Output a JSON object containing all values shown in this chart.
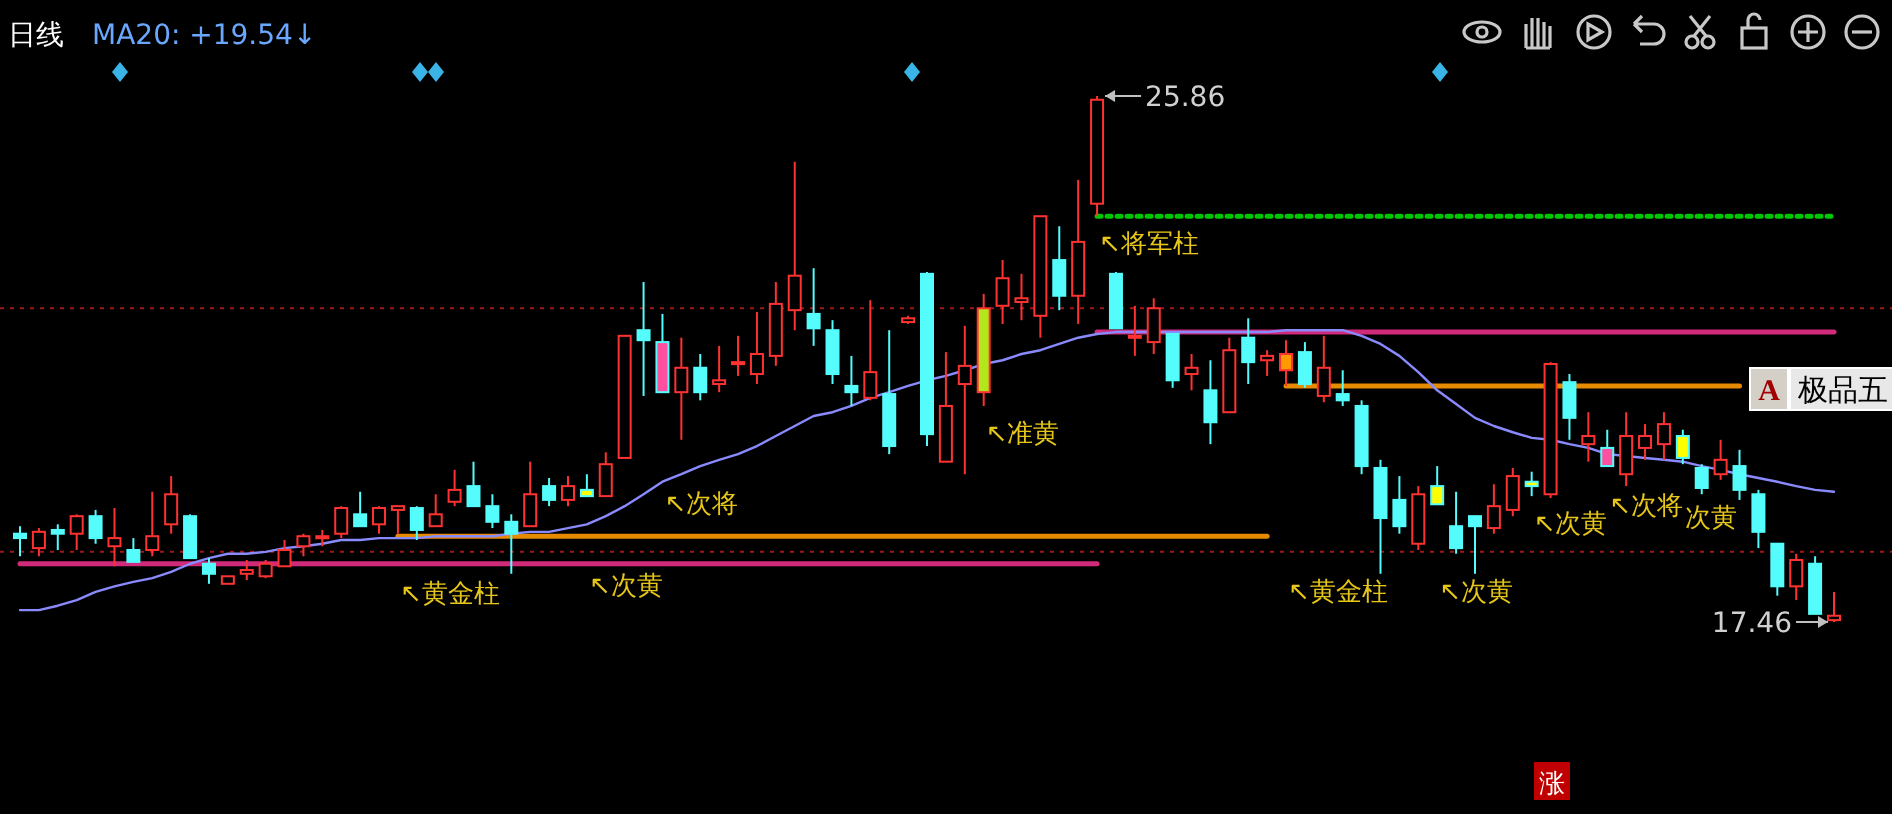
{
  "chart_data": {
    "type": "candlestick",
    "title": "日线",
    "subtitle": "MA20: +19.54↓",
    "categories": [
      null,
      null,
      null,
      null,
      null,
      null,
      null,
      null,
      null,
      null,
      null,
      null,
      null,
      null,
      null,
      null,
      null,
      null,
      null,
      null,
      null,
      null,
      null,
      null,
      null,
      null,
      null,
      null,
      null,
      null,
      null,
      null,
      null,
      null,
      null,
      null,
      null,
      null,
      null,
      null,
      null,
      null,
      null,
      null,
      null,
      null,
      null,
      null,
      null,
      null,
      null,
      null,
      null,
      null,
      null,
      null,
      null,
      null,
      null,
      null,
      null,
      null,
      null,
      null,
      null,
      null,
      null,
      null,
      null,
      null,
      null,
      null,
      null,
      null,
      null,
      null,
      null,
      null,
      null,
      null,
      null,
      null,
      null,
      null,
      null,
      null,
      null,
      null,
      null,
      null,
      null,
      null,
      null,
      null,
      null,
      null,
      null
    ],
    "ohlc": [
      [
        18.87,
        18.99,
        18.51,
        18.8
      ],
      [
        18.64,
        18.96,
        18.51,
        18.9
      ],
      [
        18.93,
        19.02,
        18.61,
        18.87
      ],
      [
        18.87,
        19.18,
        18.61,
        19.15
      ],
      [
        19.15,
        19.25,
        18.71,
        18.8
      ],
      [
        18.67,
        19.28,
        18.35,
        18.8
      ],
      [
        18.61,
        18.8,
        18.42,
        18.42
      ],
      [
        18.61,
        19.54,
        18.51,
        18.83
      ],
      [
        19.02,
        19.79,
        18.87,
        19.5
      ],
      [
        19.15,
        19.18,
        18.48,
        18.48
      ],
      [
        18.39,
        18.48,
        18.07,
        18.23
      ],
      [
        18.07,
        18.19,
        18.07,
        18.19
      ],
      [
        18.23,
        18.45,
        18.13,
        18.29
      ],
      [
        18.19,
        18.45,
        18.16,
        18.39
      ],
      [
        18.35,
        18.77,
        18.35,
        18.61
      ],
      [
        18.67,
        18.87,
        18.51,
        18.83
      ],
      [
        18.8,
        18.93,
        18.67,
        18.83
      ],
      [
        18.87,
        19.31,
        18.8,
        19.28
      ],
      [
        19.18,
        19.54,
        18.99,
        18.99
      ],
      [
        19.02,
        19.31,
        18.87,
        19.28
      ],
      [
        19.25,
        19.31,
        18.87,
        19.31
      ],
      [
        19.28,
        19.31,
        18.77,
        18.93
      ],
      [
        18.99,
        19.5,
        18.99,
        19.18
      ],
      [
        19.38,
        19.89,
        19.31,
        19.57
      ],
      [
        19.63,
        20.02,
        19.31,
        19.31
      ],
      [
        19.31,
        19.5,
        18.96,
        19.06
      ],
      [
        19.06,
        19.18,
        18.23,
        18.87
      ],
      [
        18.99,
        20.02,
        18.99,
        19.5
      ],
      [
        19.63,
        19.76,
        19.31,
        19.41
      ],
      [
        19.41,
        19.79,
        19.31,
        19.63
      ],
      [
        19.57,
        19.82,
        19.47,
        19.47
      ],
      [
        19.47,
        20.17,
        19.47,
        19.98
      ],
      [
        20.08,
        22.03,
        20.08,
        22.03
      ],
      [
        22.12,
        22.89,
        21.07,
        21.96
      ],
      [
        21.93,
        22.38,
        21.13,
        21.13
      ],
      [
        21.13,
        22.0,
        20.37,
        21.52
      ],
      [
        21.52,
        21.74,
        21.0,
        21.13
      ],
      [
        21.26,
        21.87,
        21.13,
        21.32
      ],
      [
        21.58,
        22.03,
        21.39,
        21.61
      ],
      [
        21.42,
        22.41,
        21.26,
        21.74
      ],
      [
        21.71,
        22.89,
        21.55,
        22.54
      ],
      [
        22.44,
        24.81,
        22.12,
        22.99
      ],
      [
        22.38,
        23.11,
        21.87,
        22.15
      ],
      [
        22.12,
        22.28,
        21.26,
        21.42
      ],
      [
        21.23,
        21.71,
        20.91,
        21.13
      ],
      [
        21.04,
        22.6,
        21.0,
        21.45
      ],
      [
        21.1,
        22.12,
        20.14,
        20.27
      ],
      [
        22.25,
        22.35,
        22.22,
        22.31
      ],
      [
        23.02,
        23.05,
        20.27,
        20.46
      ],
      [
        20.02,
        21.77,
        20.02,
        20.91
      ],
      [
        21.26,
        22.19,
        19.82,
        21.55
      ],
      [
        21.13,
        22.7,
        20.91,
        22.47
      ],
      [
        22.51,
        23.24,
        22.22,
        22.95
      ],
      [
        22.57,
        23.02,
        22.28,
        22.63
      ],
      [
        22.35,
        23.94,
        22.0,
        23.94
      ],
      [
        23.24,
        23.78,
        22.44,
        22.67
      ],
      [
        22.67,
        24.52,
        22.22,
        23.53
      ],
      [
        24.14,
        25.86,
        23.94,
        25.8
      ],
      [
        23.02,
        23.05,
        22.15,
        22.15
      ],
      [
        22.0,
        22.51,
        21.71,
        22.03
      ],
      [
        21.93,
        22.63,
        21.74,
        22.47
      ],
      [
        22.06,
        22.06,
        21.2,
        21.32
      ],
      [
        21.42,
        21.74,
        21.16,
        21.52
      ],
      [
        21.16,
        21.64,
        20.3,
        20.65
      ],
      [
        20.81,
        22.0,
        20.81,
        21.8
      ],
      [
        22.0,
        22.31,
        21.26,
        21.61
      ],
      [
        21.64,
        21.8,
        21.39,
        21.71
      ],
      [
        21.48,
        21.96,
        21.23,
        21.74
      ],
      [
        21.77,
        21.93,
        21.2,
        21.26
      ],
      [
        21.07,
        22.03,
        20.97,
        21.52
      ],
      [
        21.1,
        21.48,
        20.91,
        21.0
      ],
      [
        20.91,
        21.0,
        19.82,
        19.95
      ],
      [
        19.92,
        20.05,
        18.23,
        19.12
      ],
      [
        19.41,
        19.79,
        18.87,
        18.99
      ],
      [
        18.71,
        19.63,
        18.61,
        19.5
      ],
      [
        19.63,
        19.95,
        19.34,
        19.34
      ],
      [
        18.99,
        19.54,
        18.55,
        18.64
      ],
      [
        19.15,
        19.15,
        18.23,
        18.99
      ],
      [
        18.96,
        19.66,
        18.87,
        19.31
      ],
      [
        19.25,
        19.92,
        19.15,
        19.79
      ],
      [
        19.7,
        19.86,
        19.47,
        19.63
      ],
      [
        19.5,
        21.61,
        19.44,
        21.58
      ],
      [
        21.29,
        21.42,
        20.37,
        20.72
      ],
      [
        20.3,
        20.81,
        20.02,
        20.43
      ],
      [
        20.24,
        20.53,
        19.95,
        19.95
      ],
      [
        19.82,
        20.81,
        19.63,
        20.43
      ],
      [
        20.24,
        20.62,
        20.05,
        20.43
      ],
      [
        20.3,
        20.81,
        20.05,
        20.62
      ],
      [
        20.43,
        20.53,
        19.98,
        20.08
      ],
      [
        19.92,
        19.98,
        19.5,
        19.6
      ],
      [
        19.82,
        20.37,
        19.73,
        20.05
      ],
      [
        19.95,
        20.21,
        19.41,
        19.57
      ],
      [
        19.5,
        19.57,
        18.64,
        18.9
      ],
      [
        18.71,
        18.71,
        17.88,
        18.03
      ],
      [
        18.03,
        18.55,
        17.81,
        18.45
      ],
      [
        18.39,
        18.51,
        17.59,
        17.59
      ],
      [
        17.49,
        17.94,
        17.46,
        17.56
      ]
    ],
    "colors": [
      "#54fcfc",
      "#ff3232",
      "#54fcfc",
      "#ff3232",
      "#54fcfc",
      "#ff3232",
      "#54fcfc",
      "#ff3232",
      "#ff3232",
      "#54fcfc",
      "#54fcfc",
      "#ff3232",
      "#ff3232",
      "#ff3232",
      "#ff3232",
      "#ff3232",
      "#ff3232",
      "#ff3232",
      "#54fcfc",
      "#ff3232",
      "#ff3232",
      "#54fcfc",
      "#ff3232",
      "#ff3232",
      "#54fcfc",
      "#54fcfc",
      "#54fcfc",
      "#ff3232",
      "#54fcfc",
      "#ff3232",
      "#ffff00",
      "#ff3232",
      "#ff3232",
      "#54fcfc",
      "#ff4fa0",
      "#ff3232",
      "#54fcfc",
      "#ff3232",
      "#ff3232",
      "#ff3232",
      "#ff3232",
      "#ff3232",
      "#54fcfc",
      "#54fcfc",
      "#54fcfc",
      "#ff3232",
      "#54fcfc",
      "#ff3232",
      "#54fcfc",
      "#ff3232",
      "#ff3232",
      "#b4e61e",
      "#ff3232",
      "#ff3232",
      "#ff3232",
      "#54fcfc",
      "#ff3232",
      "#ff3232",
      "#54fcfc",
      "#ff3232",
      "#ff3232",
      "#54fcfc",
      "#ff3232",
      "#54fcfc",
      "#ff3232",
      "#54fcfc",
      "#ff3232",
      "#ff9a00",
      "#54fcfc",
      "#ff3232",
      "#54fcfc",
      "#54fcfc",
      "#54fcfc",
      "#54fcfc",
      "#ff3232",
      "#ffff00",
      "#54fcfc",
      "#54fcfc",
      "#ff3232",
      "#ff3232",
      "#ffff00",
      "#ff3232",
      "#54fcfc",
      "#ff3232",
      "#ff4fa0",
      "#ff3232",
      "#ff3232",
      "#ff3232",
      "#ffff00",
      "#54fcfc",
      "#ff3232",
      "#54fcfc",
      "#54fcfc",
      "#54fcfc",
      "#ff3232",
      "#54fcfc",
      "#ff3232"
    ],
    "value_labels": [
      null,
      null,
      null,
      null,
      null,
      null,
      null,
      null,
      null,
      null,
      null,
      null,
      null,
      null,
      null,
      null,
      null,
      null,
      null,
      null,
      "↖黄金柱",
      null,
      null,
      null,
      null,
      null,
      null,
      null,
      null,
      null,
      "↖次黄",
      null,
      null,
      null,
      "↖次将",
      null,
      null,
      null,
      null,
      null,
      null,
      null,
      null,
      null,
      null,
      null,
      null,
      null,
      null,
      null,
      null,
      "↖准黄",
      null,
      null,
      null,
      null,
      null,
      "↖将军柱",
      null,
      null,
      null,
      null,
      null,
      null,
      null,
      null,
      null,
      "↖黄金柱",
      null,
      null,
      null,
      null,
      null,
      null,
      null,
      "↖次黄",
      null,
      null,
      null,
      null,
      "↖次黄",
      null,
      null,
      null,
      "↖次将",
      null,
      null,
      null,
      "次黄",
      null,
      null,
      null,
      null,
      null,
      null,
      null,
      null
    ],
    "series": [
      {
        "type": "line",
        "color": "#8a8aff",
        "values": [
          17.65,
          17.65,
          17.72,
          17.81,
          17.94,
          18.03,
          18.1,
          18.16,
          18.26,
          18.39,
          18.48,
          18.55,
          18.55,
          18.58,
          18.64,
          18.67,
          18.71,
          18.77,
          18.77,
          18.8,
          18.8,
          18.8,
          18.83,
          18.83,
          18.83,
          18.83,
          18.87,
          18.9,
          18.9,
          18.96,
          19.02,
          19.15,
          19.31,
          19.5,
          19.7,
          19.82,
          19.95,
          20.05,
          20.14,
          20.27,
          20.43,
          20.59,
          20.75,
          20.81,
          20.91,
          21.04,
          21.13,
          21.23,
          21.32,
          21.39,
          21.48,
          21.58,
          21.64,
          21.74,
          21.8,
          21.9,
          22.0,
          22.06,
          22.09,
          22.09,
          22.09,
          22.09,
          22.09,
          22.09,
          22.09,
          22.09,
          22.09,
          22.12,
          22.12,
          22.12,
          22.12,
          22.03,
          21.9,
          21.71,
          21.45,
          21.16,
          20.94,
          20.72,
          20.59,
          20.49,
          20.4,
          20.37,
          20.3,
          20.24,
          20.14,
          20.11,
          20.08,
          20.05,
          20.02,
          19.95,
          19.89,
          19.82,
          19.76,
          19.7,
          19.63,
          19.57,
          19.54
        ]
      },
      {
        "type": "line",
        "color": "#d02a7a",
        "values": [
          18.39,
          18.39,
          18.39,
          18.39,
          18.39,
          18.39,
          18.39,
          18.39,
          18.39,
          18.39,
          18.39,
          18.39,
          18.39,
          18.39,
          18.39,
          18.39,
          18.39,
          18.39,
          18.39,
          18.39,
          18.39,
          18.39,
          18.39,
          18.39,
          18.39,
          18.39,
          18.39,
          18.39,
          18.39,
          18.39,
          18.39,
          18.39,
          18.39,
          18.39,
          18.39,
          18.39,
          18.39,
          18.39,
          18.39,
          18.39,
          18.39,
          18.39,
          18.39,
          18.39,
          18.39,
          18.39,
          18.39,
          18.39,
          18.39,
          18.39,
          18.39,
          18.39,
          18.39,
          18.39,
          18.39,
          18.39,
          18.39,
          18.39,
          null,
          null,
          null,
          null,
          null,
          null,
          null,
          null,
          null,
          null,
          null,
          null,
          null,
          null,
          null,
          null,
          null,
          null,
          null,
          null,
          null,
          null,
          null,
          null,
          null,
          null,
          null,
          null,
          null,
          null,
          null,
          null,
          null,
          null,
          null,
          null,
          null,
          null,
          null
        ]
      },
      {
        "type": "line",
        "color": "#e68a00",
        "values": [
          null,
          null,
          null,
          null,
          null,
          null,
          null,
          null,
          null,
          null,
          null,
          null,
          null,
          null,
          null,
          null,
          null,
          null,
          null,
          null,
          18.83,
          18.83,
          18.83,
          18.83,
          18.83,
          18.83,
          18.83,
          18.83,
          18.83,
          18.83,
          18.83,
          18.83,
          18.83,
          18.83,
          18.83,
          18.83,
          18.83,
          18.83,
          18.83,
          18.83,
          18.83,
          18.83,
          18.83,
          18.83,
          18.83,
          18.83,
          18.83,
          18.83,
          18.83,
          18.83,
          18.83,
          18.83,
          18.83,
          18.83,
          18.83,
          18.83,
          18.83,
          18.83,
          18.83,
          18.83,
          18.83,
          18.83,
          18.83,
          18.83,
          18.83,
          18.83,
          18.83,
          null,
          null,
          null,
          null,
          null,
          null,
          null,
          null,
          null,
          null,
          null,
          null,
          null,
          null,
          null,
          null,
          null,
          null,
          null,
          null,
          null,
          null,
          null,
          null,
          null,
          null,
          null,
          null,
          null,
          null
        ]
      },
      {
        "type": "line",
        "color": "#e68a00",
        "values": [
          null,
          null,
          null,
          null,
          null,
          null,
          null,
          null,
          null,
          null,
          null,
          null,
          null,
          null,
          null,
          null,
          null,
          null,
          null,
          null,
          null,
          null,
          null,
          null,
          null,
          null,
          null,
          null,
          null,
          null,
          null,
          null,
          null,
          null,
          null,
          null,
          null,
          null,
          null,
          null,
          null,
          null,
          null,
          null,
          null,
          null,
          null,
          null,
          null,
          null,
          null,
          null,
          null,
          null,
          null,
          null,
          null,
          null,
          null,
          null,
          null,
          null,
          null,
          null,
          null,
          null,
          null,
          21.23,
          21.23,
          21.23,
          21.23,
          21.23,
          21.23,
          21.23,
          21.23,
          21.23,
          21.23,
          21.23,
          21.23,
          21.23,
          21.23,
          21.23,
          21.23,
          21.23,
          21.23,
          21.23,
          21.23,
          21.23,
          21.23,
          21.23,
          21.23,
          21.23,
          null,
          null,
          null,
          null,
          null
        ]
      },
      {
        "type": "line",
        "color": "#d02a7a",
        "values": [
          null,
          null,
          null,
          null,
          null,
          null,
          null,
          null,
          null,
          null,
          null,
          null,
          null,
          null,
          null,
          null,
          null,
          null,
          null,
          null,
          null,
          null,
          null,
          null,
          null,
          null,
          null,
          null,
          null,
          null,
          null,
          null,
          null,
          null,
          null,
          null,
          null,
          null,
          null,
          null,
          null,
          null,
          null,
          null,
          null,
          null,
          null,
          null,
          null,
          null,
          null,
          null,
          null,
          null,
          null,
          null,
          null,
          22.09,
          22.09,
          22.09,
          22.09,
          22.09,
          22.09,
          22.09,
          22.09,
          22.09,
          22.09,
          22.09,
          22.09,
          22.09,
          22.09,
          22.09,
          22.09,
          22.09,
          22.09,
          22.09,
          22.09,
          22.09,
          22.09,
          22.09,
          22.09,
          22.09,
          22.09,
          22.09,
          22.09,
          22.09,
          22.09,
          22.09,
          22.09,
          22.09,
          22.09,
          22.09,
          22.09,
          22.09,
          22.09,
          22.09,
          22.09
        ]
      },
      {
        "type": "line",
        "color": "#00c800",
        "line_style": "dotted",
        "values": [
          null,
          null,
          null,
          null,
          null,
          null,
          null,
          null,
          null,
          null,
          null,
          null,
          null,
          null,
          null,
          null,
          null,
          null,
          null,
          null,
          null,
          null,
          null,
          null,
          null,
          null,
          null,
          null,
          null,
          null,
          null,
          null,
          null,
          null,
          null,
          null,
          null,
          null,
          null,
          null,
          null,
          null,
          null,
          null,
          null,
          null,
          null,
          null,
          null,
          null,
          null,
          null,
          null,
          null,
          null,
          null,
          null,
          23.94,
          23.94,
          23.94,
          23.94,
          23.94,
          23.94,
          23.94,
          23.94,
          23.94,
          23.94,
          23.94,
          23.94,
          23.94,
          23.94,
          23.94,
          23.94,
          23.94,
          23.94,
          23.94,
          23.94,
          23.94,
          23.94,
          23.94,
          23.94,
          23.94,
          23.94,
          23.94,
          23.94,
          23.94,
          23.94,
          23.94,
          23.94,
          23.94,
          23.94,
          23.94,
          23.94,
          23.94,
          23.94,
          23.94,
          23.94
        ]
      }
    ],
    "ref_lines": [
      {
        "axis": "y",
        "value": 22.47,
        "color": "#a01818",
        "line_style": "dotted"
      },
      {
        "axis": "y",
        "value": 18.58,
        "color": "#a01818",
        "line_style": "dotted"
      }
    ],
    "annotations": [
      "25.86",
      "17.46",
      "A",
      "极品五",
      "涨"
    ]
  }
}
